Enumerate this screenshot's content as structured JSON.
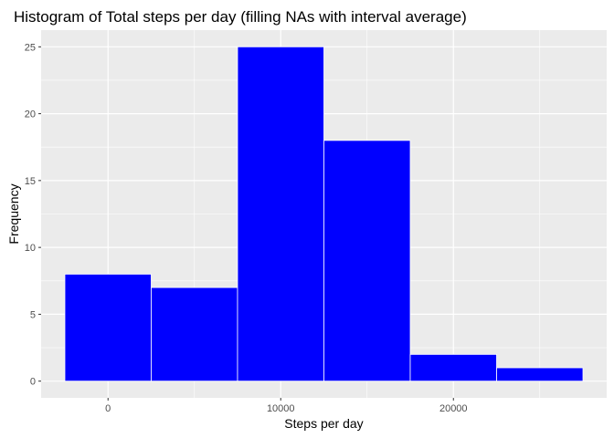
{
  "chart_data": {
    "type": "bar",
    "title": "Histogram of Total steps per day (filling NAs with interval average)",
    "xlabel": "Steps per day",
    "ylabel": "Frequency",
    "bins": [
      {
        "x0": -2500,
        "x1": 2500,
        "count": 8
      },
      {
        "x0": 2500,
        "x1": 7500,
        "count": 7
      },
      {
        "x0": 7500,
        "x1": 12500,
        "count": 25
      },
      {
        "x0": 12500,
        "x1": 17500,
        "count": 18
      },
      {
        "x0": 17500,
        "x1": 22500,
        "count": 2
      },
      {
        "x0": 22500,
        "x1": 27500,
        "count": 1
      }
    ],
    "xlim": [
      -3875,
      28875
    ],
    "ylim": [
      -1.25,
      26.25
    ],
    "xticks": [
      0,
      10000,
      20000
    ],
    "xtick_labels": [
      "0",
      "10000",
      "20000"
    ],
    "yticks": [
      0,
      5,
      10,
      15,
      20,
      25
    ],
    "ytick_labels": [
      "0",
      "5",
      "10",
      "15",
      "20",
      "25"
    ],
    "grid": true,
    "colors": {
      "bar_fill": "#0000ff",
      "bar_edge": "#ffffff",
      "panel_bg": "#ebebeb",
      "grid_major": "#ffffff",
      "text": "#000000",
      "tick_text": "#4d4d4d"
    }
  }
}
